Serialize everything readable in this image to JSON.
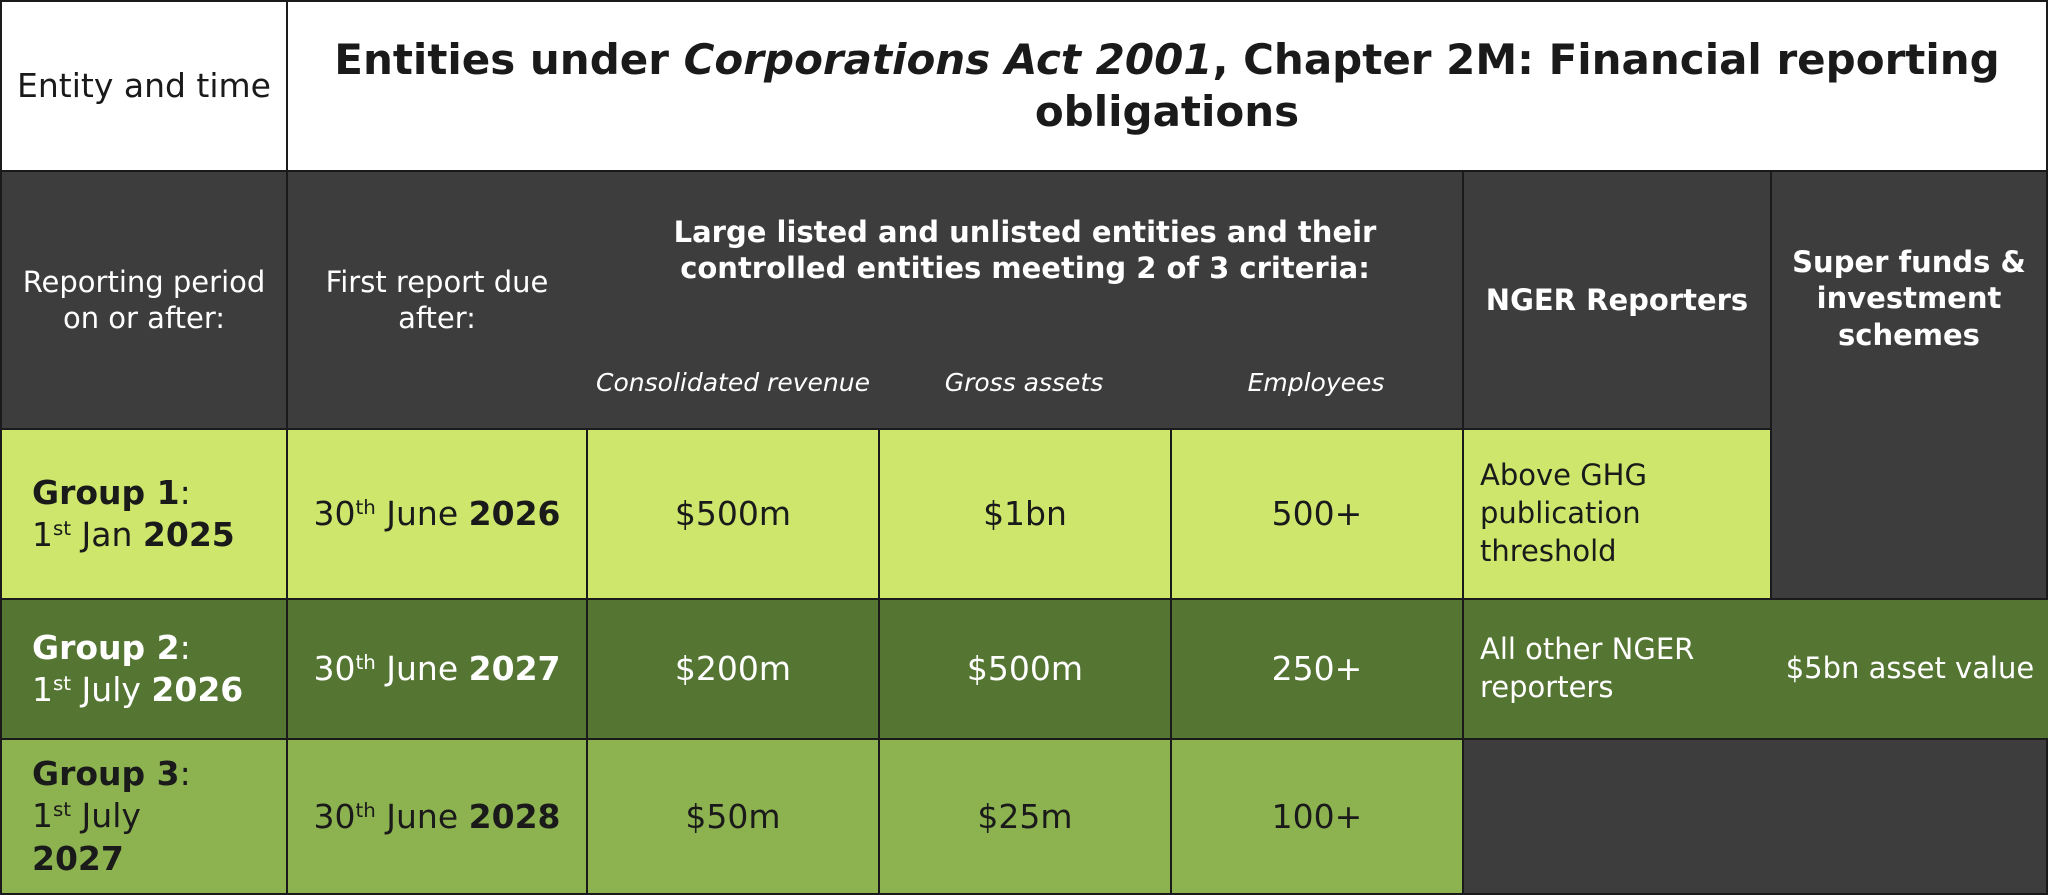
{
  "header": {
    "corner": "Entity and time",
    "title_pre": "Entities under ",
    "title_italic": "Corporations Act 2001",
    "title_post": ", Chapter 2M: Financial reporting obligations"
  },
  "columns": {
    "reporting_period": "Reporting period on or after:",
    "first_report": "First report due after:",
    "large_entities": "Large listed and unlisted entities and their controlled entities meeting 2 of 3 criteria:",
    "consolidated_revenue": "Consolidated revenue",
    "gross_assets": "Gross assets",
    "employees": "Employees",
    "nger": "NGER Reporters",
    "super": "Super funds & investment schemes"
  },
  "groups": [
    {
      "name": "Group 1",
      "colon": ":",
      "day": "1",
      "ord": "st",
      "month": " Jan ",
      "year": "2025",
      "due_day": "30",
      "due_ord": "th",
      "due_month": " June ",
      "due_year": "2026",
      "revenue": "$500m",
      "assets": "$1bn",
      "employees": "500+",
      "nger": "Above GHG publication threshold"
    },
    {
      "name": "Group 2",
      "colon": ":",
      "day": "1",
      "ord": "st",
      "month": " July ",
      "year": "2026",
      "due_day": "30",
      "due_ord": "th",
      "due_month": " June ",
      "due_year": "2027",
      "revenue": "$200m",
      "assets": "$500m",
      "employees": "250+",
      "nger": "All other NGER reporters",
      "super": "$5bn asset value"
    },
    {
      "name": "Group 3",
      "colon": ":",
      "day": "1",
      "ord": "st",
      "month": " July",
      "year": "2027",
      "due_day": "30",
      "due_ord": "th",
      "due_month": " June ",
      "due_year": "2028",
      "revenue": "$50m",
      "assets": "$25m",
      "employees": "100+"
    }
  ],
  "colors": {
    "dark": "#3d3d3d",
    "lime": "#cde66b",
    "forest": "#557533",
    "moss": "#8db350"
  }
}
